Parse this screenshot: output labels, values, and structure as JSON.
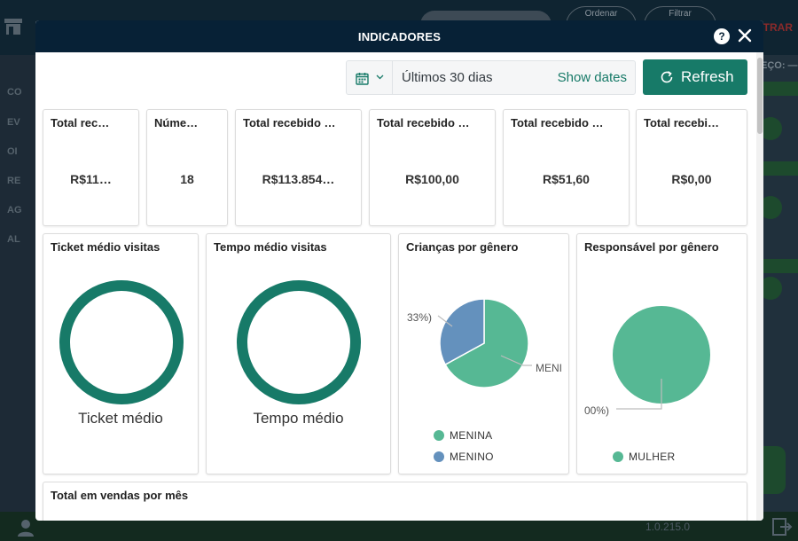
{
  "background": {
    "filter_pills": [
      "Ordenar",
      "Filtrar"
    ],
    "cancel_label": "TRAR",
    "sidebar_items": [
      "CO",
      "EV",
      "OI",
      "RE",
      "AG",
      "AL"
    ],
    "price_label": "EÇO: —",
    "version": "1.0.215.0"
  },
  "modal": {
    "title": "INDICADORES",
    "help_icon": "?",
    "toolbar": {
      "date_range": "Últimos 30 dias",
      "show_dates": "Show dates",
      "refresh": "Refresh"
    },
    "kpis": [
      {
        "title": "Total rec…",
        "value": "R$11…"
      },
      {
        "title": "Núme…",
        "value": "18"
      },
      {
        "title": "Total recebido …",
        "value": "R$113.854…"
      },
      {
        "title": "Total recebido …",
        "value": "R$100,00"
      },
      {
        "title": "Total recebido …",
        "value": "R$51,60"
      },
      {
        "title": "Total recebi…",
        "value": "R$0,00"
      }
    ],
    "ticket": {
      "title": "Ticket médio visitas",
      "label": "Ticket médio"
    },
    "tempo": {
      "title": "Tempo médio visitas",
      "label": "Tempo médio"
    },
    "children": {
      "title": "Crianças por gênero",
      "left_label": "33%)",
      "right_label": "MENI"
    },
    "responsible": {
      "title": "Responsável por gênero",
      "left_label": "00%)"
    },
    "sales": {
      "title": "Total em vendas por mês"
    }
  },
  "colors": {
    "primary": "#177a68",
    "header": "#072136",
    "menina": "#56b894",
    "menino": "#6491bd",
    "mulher": "#56b894"
  },
  "chart_data": [
    {
      "type": "pie",
      "title": "Crianças por gênero",
      "categories": [
        "MENINA",
        "MENINO"
      ],
      "values": [
        67,
        33
      ]
    },
    {
      "type": "pie",
      "title": "Responsável por gênero",
      "categories": [
        "MULHER"
      ],
      "values": [
        100
      ]
    }
  ]
}
